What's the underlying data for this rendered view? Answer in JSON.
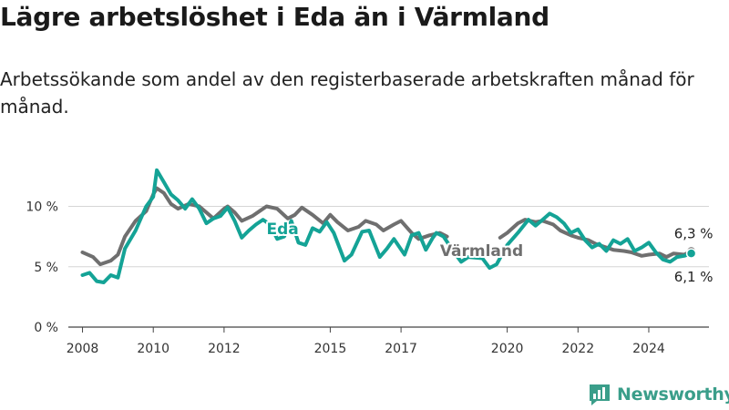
{
  "header": {
    "title": "Lägre arbetslöshet i Eda än i Värmland",
    "subtitle": "Arbetssökande som andel av den registerbaserade arbetskraften månad för månad."
  },
  "brand": {
    "name": "Newsworthy",
    "icon": "bar-chart-logo-icon",
    "color": "#3a9e8a"
  },
  "chart_data": {
    "type": "line",
    "x_ticks": [
      "2008",
      "2010",
      "2012",
      "2015",
      "2017",
      "2020",
      "2022",
      "2024"
    ],
    "y_ticks": [
      "0 %",
      "5 %",
      "10 %"
    ],
    "ylim": [
      0,
      12
    ],
    "xlim": [
      2007.6,
      2025.7
    ],
    "grid": true,
    "legend": "inline labels",
    "colors": {
      "Eda": "#14a396",
      "Värmland": "#6f6f6f"
    },
    "end_labels": {
      "Värmland": "6,3 %",
      "Eda": "6,1 %"
    },
    "series": [
      {
        "name": "Värmland",
        "color": "#6f6f6f",
        "points": [
          [
            2008.0,
            6.2
          ],
          [
            2008.3,
            5.8
          ],
          [
            2008.5,
            5.2
          ],
          [
            2008.8,
            5.5
          ],
          [
            2009.0,
            6.0
          ],
          [
            2009.2,
            7.5
          ],
          [
            2009.5,
            8.8
          ],
          [
            2009.8,
            9.6
          ],
          [
            2010.0,
            11.0
          ],
          [
            2010.1,
            11.5
          ],
          [
            2010.3,
            11.1
          ],
          [
            2010.5,
            10.2
          ],
          [
            2010.7,
            9.8
          ],
          [
            2011.0,
            10.2
          ],
          [
            2011.3,
            10.0
          ],
          [
            2011.7,
            9.0
          ],
          [
            2012.0,
            9.8
          ],
          [
            2012.1,
            10.0
          ],
          [
            2012.3,
            9.5
          ],
          [
            2012.5,
            8.8
          ],
          [
            2012.8,
            9.2
          ],
          [
            2013.0,
            9.6
          ],
          [
            2013.2,
            10.0
          ],
          [
            2013.5,
            9.8
          ],
          [
            2013.8,
            9.0
          ],
          [
            2014.0,
            9.3
          ],
          [
            2014.2,
            9.9
          ],
          [
            2014.5,
            9.3
          ],
          [
            2014.8,
            8.6
          ],
          [
            2015.0,
            9.3
          ],
          [
            2015.2,
            8.7
          ],
          [
            2015.5,
            8.0
          ],
          [
            2015.8,
            8.3
          ],
          [
            2016.0,
            8.8
          ],
          [
            2016.3,
            8.5
          ],
          [
            2016.5,
            8.0
          ],
          [
            2016.8,
            8.5
          ],
          [
            2017.0,
            8.8
          ],
          [
            2017.3,
            7.8
          ],
          [
            2017.5,
            7.3
          ],
          [
            2017.8,
            7.6
          ],
          [
            2018.1,
            7.8
          ],
          [
            2018.3,
            7.5
          ],
          [
            2019.8,
            7.4
          ],
          [
            2020.0,
            7.8
          ],
          [
            2020.3,
            8.6
          ],
          [
            2020.5,
            8.9
          ],
          [
            2020.8,
            8.7
          ],
          [
            2021.0,
            8.8
          ],
          [
            2021.3,
            8.5
          ],
          [
            2021.5,
            8.0
          ],
          [
            2021.8,
            7.6
          ],
          [
            2022.0,
            7.4
          ],
          [
            2022.3,
            7.2
          ],
          [
            2022.5,
            6.9
          ],
          [
            2022.8,
            6.6
          ],
          [
            2023.0,
            6.4
          ],
          [
            2023.3,
            6.3
          ],
          [
            2023.5,
            6.2
          ],
          [
            2023.8,
            5.9
          ],
          [
            2024.0,
            6.0
          ],
          [
            2024.3,
            6.1
          ],
          [
            2024.5,
            5.8
          ],
          [
            2024.7,
            6.1
          ],
          [
            2025.0,
            6.0
          ],
          [
            2025.2,
            6.3
          ]
        ]
      },
      {
        "name": "Eda",
        "color": "#14a396",
        "points": [
          [
            2008.0,
            4.3
          ],
          [
            2008.2,
            4.5
          ],
          [
            2008.4,
            3.8
          ],
          [
            2008.6,
            3.7
          ],
          [
            2008.8,
            4.3
          ],
          [
            2009.0,
            4.1
          ],
          [
            2009.2,
            6.5
          ],
          [
            2009.5,
            8.0
          ],
          [
            2009.8,
            10.0
          ],
          [
            2010.0,
            10.8
          ],
          [
            2010.1,
            13.0
          ],
          [
            2010.3,
            12.0
          ],
          [
            2010.5,
            11.0
          ],
          [
            2010.7,
            10.5
          ],
          [
            2010.9,
            9.8
          ],
          [
            2011.1,
            10.6
          ],
          [
            2011.3,
            9.8
          ],
          [
            2011.5,
            8.6
          ],
          [
            2011.7,
            9.0
          ],
          [
            2011.9,
            9.2
          ],
          [
            2012.1,
            9.9
          ],
          [
            2012.3,
            8.8
          ],
          [
            2012.5,
            7.4
          ],
          [
            2012.7,
            8.0
          ],
          [
            2012.9,
            8.5
          ],
          [
            2013.1,
            8.9
          ],
          [
            2013.3,
            8.5
          ],
          [
            2013.5,
            7.3
          ],
          [
            2013.7,
            7.5
          ],
          [
            2013.9,
            8.8
          ],
          [
            2014.1,
            7.0
          ],
          [
            2014.3,
            6.8
          ],
          [
            2014.5,
            8.2
          ],
          [
            2014.7,
            7.9
          ],
          [
            2014.9,
            8.7
          ],
          [
            2015.1,
            7.8
          ],
          [
            2015.4,
            5.5
          ],
          [
            2015.6,
            6.0
          ],
          [
            2015.9,
            7.9
          ],
          [
            2016.1,
            8.0
          ],
          [
            2016.4,
            5.8
          ],
          [
            2016.6,
            6.5
          ],
          [
            2016.8,
            7.3
          ],
          [
            2017.1,
            6.0
          ],
          [
            2017.3,
            7.6
          ],
          [
            2017.5,
            7.8
          ],
          [
            2017.7,
            6.4
          ],
          [
            2017.9,
            7.4
          ],
          [
            2018.0,
            7.8
          ],
          [
            2018.2,
            7.5
          ],
          [
            2018.5,
            6.2
          ],
          [
            2018.7,
            5.4
          ],
          [
            2018.9,
            5.8
          ],
          [
            2019.3,
            5.7
          ],
          [
            2019.5,
            4.9
          ],
          [
            2019.7,
            5.2
          ],
          [
            2020.0,
            6.8
          ],
          [
            2020.3,
            7.8
          ],
          [
            2020.6,
            8.9
          ],
          [
            2020.8,
            8.4
          ],
          [
            2021.0,
            8.9
          ],
          [
            2021.2,
            9.4
          ],
          [
            2021.4,
            9.1
          ],
          [
            2021.6,
            8.6
          ],
          [
            2021.8,
            7.8
          ],
          [
            2022.0,
            8.1
          ],
          [
            2022.2,
            7.2
          ],
          [
            2022.4,
            6.6
          ],
          [
            2022.6,
            6.9
          ],
          [
            2022.8,
            6.3
          ],
          [
            2023.0,
            7.2
          ],
          [
            2023.2,
            6.9
          ],
          [
            2023.4,
            7.3
          ],
          [
            2023.6,
            6.3
          ],
          [
            2023.8,
            6.6
          ],
          [
            2024.0,
            7.0
          ],
          [
            2024.2,
            6.2
          ],
          [
            2024.4,
            5.6
          ],
          [
            2024.6,
            5.4
          ],
          [
            2024.8,
            5.8
          ],
          [
            2025.0,
            5.9
          ],
          [
            2025.2,
            6.1
          ]
        ]
      }
    ]
  }
}
